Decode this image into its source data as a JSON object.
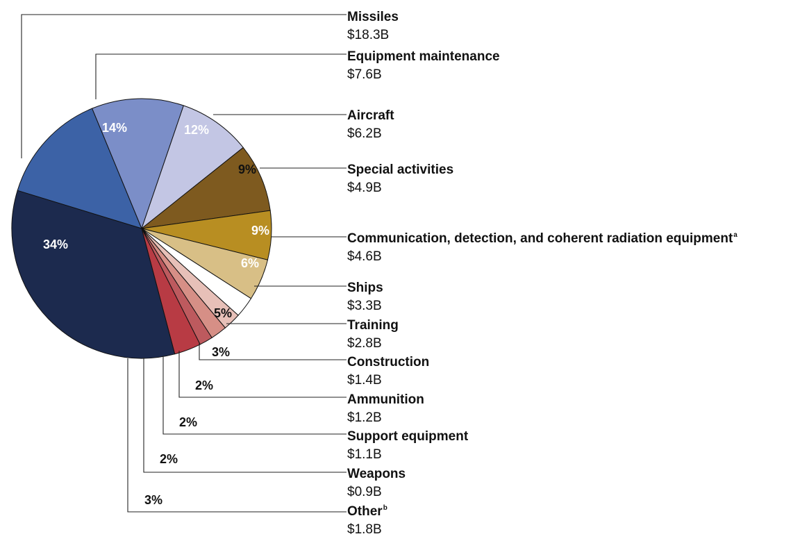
{
  "chart_data": {
    "type": "pie",
    "categories": [
      "Missiles",
      "Equipment maintenance",
      "Aircraft",
      "Special activities",
      "Communication, detection, and coherent radiation equipment",
      "Ships",
      "Training",
      "Construction",
      "Ammunition",
      "Support equipment",
      "Weapons",
      "Other"
    ],
    "values": [
      18.3,
      7.6,
      6.2,
      4.9,
      4.6,
      3.3,
      2.8,
      1.4,
      1.2,
      1.1,
      0.9,
      1.8
    ],
    "value_labels": [
      "$18.3B",
      "$7.6B",
      "$6.2B",
      "$4.9B",
      "$4.6B",
      "$3.3B",
      "$2.8B",
      "$1.4B",
      "$1.2B",
      "$1.1B",
      "$0.9B",
      "$1.8B"
    ],
    "percent_labels": [
      "34%",
      "14%",
      "12%",
      "9%",
      "9%",
      "6%",
      "5%",
      "3%",
      "2%",
      "2%",
      "2%",
      "3%"
    ],
    "footnote_marks": [
      "",
      "",
      "",
      "",
      "a",
      "",
      "",
      "",
      "",
      "",
      "",
      "b"
    ],
    "colors": [
      "#1c2a4e",
      "#3c62a6",
      "#7b8ec8",
      "#c3c6e4",
      "#7e5a1f",
      "#b88e22",
      "#d8bf86",
      "#ffffff",
      "#e7c0b8",
      "#d68f86",
      "#bd5a5e",
      "#b83b44"
    ],
    "percent_label_colors": [
      "#ffffff",
      "#ffffff",
      "#ffffff",
      "#111111",
      "#ffffff",
      "#ffffff",
      "#111111",
      "#111111",
      "#111111",
      "#111111",
      "#111111",
      "#111111"
    ],
    "legend_placement": "right"
  }
}
